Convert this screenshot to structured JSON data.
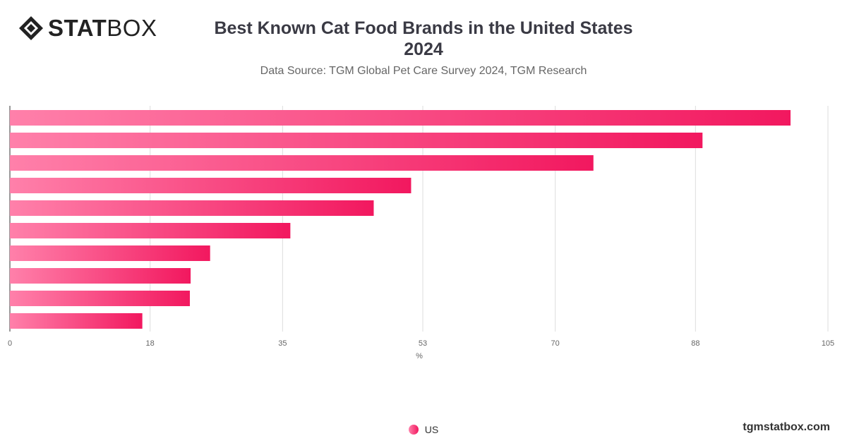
{
  "header": {
    "logo_stat": "STAT",
    "logo_box": "BOX",
    "title_line1": "Best Known Cat Food Brands in the United States",
    "title_line2": "2024",
    "subtitle": "Data Source: TGM Global Pet Care Survey 2024, TGM Research"
  },
  "footer": {
    "site": "tgmstatbox.com"
  },
  "colors": {
    "bar_start": "#ff80aa",
    "bar_end": "#f2185f",
    "grid": "#dddddd",
    "axis": "#333333"
  },
  "chart_data": {
    "type": "bar",
    "orientation": "horizontal",
    "xlabel": "%",
    "xlim": [
      0,
      105
    ],
    "xticks": [
      0,
      18,
      35,
      53,
      70,
      88,
      105
    ],
    "grid": true,
    "legend_placement": "bottom-center",
    "category_labels_visible": false,
    "series": [
      {
        "name": "US",
        "values": [
          100.2,
          88.9,
          74.9,
          51.5,
          46.7,
          36.0,
          25.7,
          23.2,
          23.1,
          17.0
        ]
      }
    ]
  }
}
